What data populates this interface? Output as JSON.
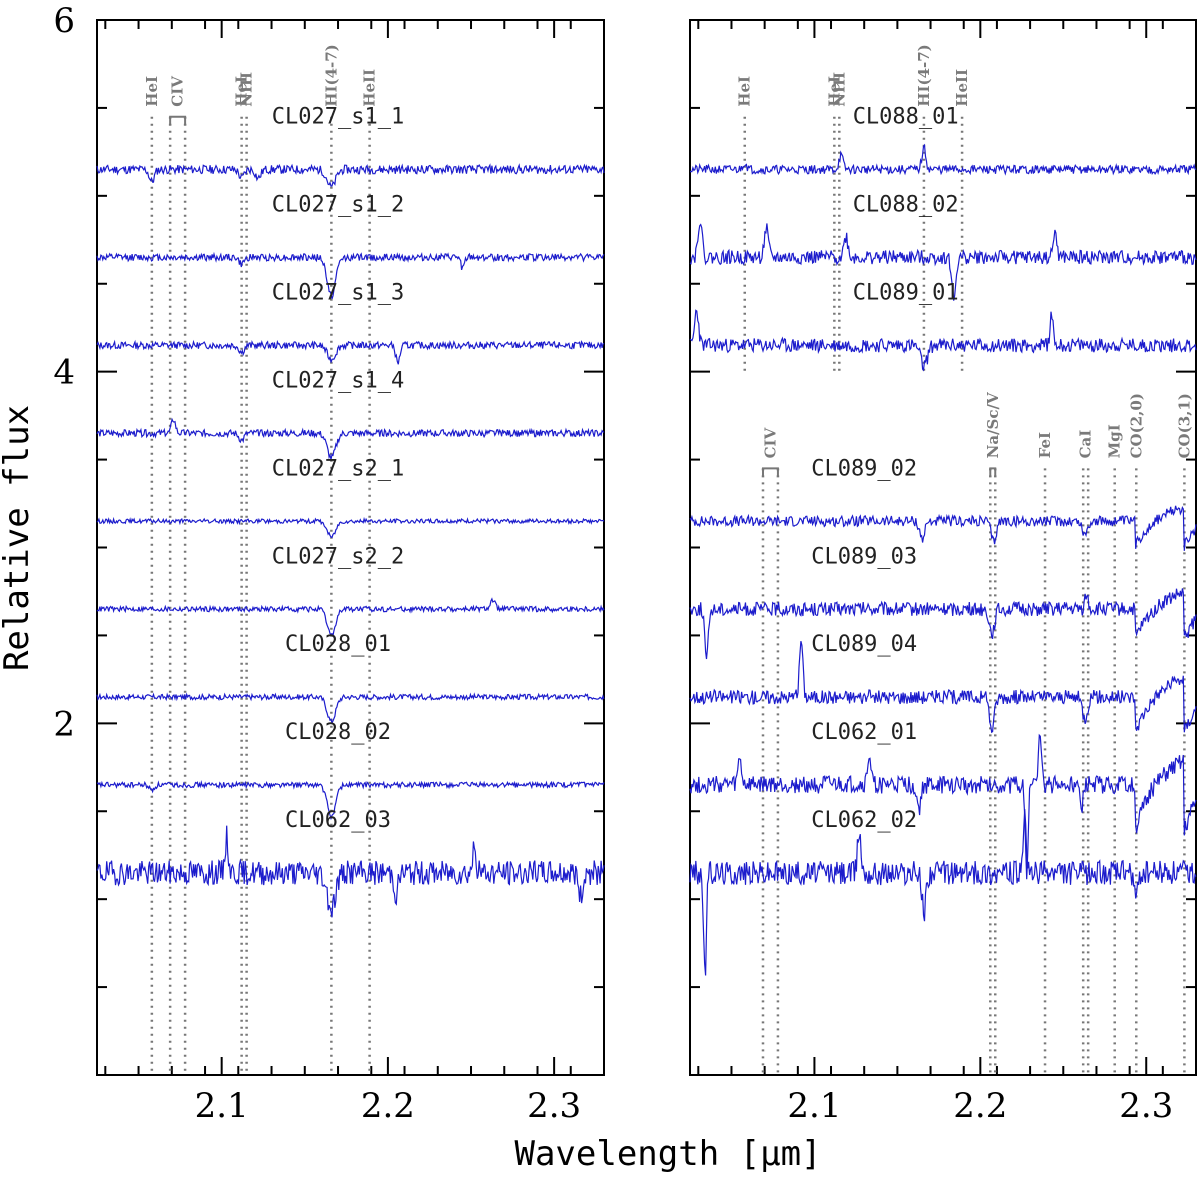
{
  "chart_data": {
    "type": "line",
    "xlabel": "Wavelength [μm]",
    "ylabel": "Relative flux",
    "colors": {
      "spectrum": "#1c1ccc",
      "marker": "#777777",
      "axis": "#000000"
    },
    "panels": [
      {
        "name": "left",
        "xlim": [
          2.025,
          2.33
        ],
        "ylim": [
          0.0,
          6.0
        ],
        "xticks": [
          {
            "value": 2.1,
            "label": "2.1"
          },
          {
            "value": 2.2,
            "label": "2.2"
          },
          {
            "value": 2.3,
            "label": "2.3"
          }
        ],
        "yticks": [
          {
            "value": 0,
            "label": ""
          },
          {
            "value": 2,
            "label": "2"
          },
          {
            "value": 4,
            "label": "4"
          },
          {
            "value": 6,
            "label": "6"
          }
        ],
        "line_markers": [
          {
            "label": "HeI",
            "x": [
              2.058
            ]
          },
          {
            "label": "CIV",
            "x": [
              2.069,
              2.078
            ],
            "bracket": true
          },
          {
            "label": "HeI",
            "x": [
              2.112
            ]
          },
          {
            "label": "NIII",
            "x": [
              2.115
            ]
          },
          {
            "label": "HI(4-7)",
            "x": [
              2.166
            ]
          },
          {
            "label": "HeII",
            "x": [
              2.189
            ]
          }
        ],
        "marker_range": [
          0.0,
          5.45
        ],
        "spectra": [
          {
            "name": "CL027_s1_1",
            "offset": 5.15,
            "noise": 0.025,
            "label_x": 2.17,
            "label_y": 5.45,
            "seed": 11,
            "lines": [
              [
                2.058,
                -0.07,
                0.0015
              ],
              [
                2.112,
                -0.05,
                0.0015
              ],
              [
                2.122,
                -0.05,
                0.0015
              ],
              [
                2.166,
                -0.1,
                0.0025
              ]
            ]
          },
          {
            "name": "CL027_s1_2",
            "offset": 4.65,
            "noise": 0.02,
            "label_x": 2.17,
            "label_y": 4.95,
            "seed": 12,
            "lines": [
              [
                2.112,
                -0.04,
                0.0015
              ],
              [
                2.166,
                -0.22,
                0.0025
              ],
              [
                2.245,
                -0.06,
                0.0012
              ]
            ]
          },
          {
            "name": "CL027_s1_3",
            "offset": 4.15,
            "noise": 0.02,
            "label_x": 2.17,
            "label_y": 4.45,
            "seed": 13,
            "lines": [
              [
                2.112,
                -0.04,
                0.0015
              ],
              [
                2.166,
                -0.08,
                0.0025
              ],
              [
                2.206,
                -0.1,
                0.0012
              ]
            ]
          },
          {
            "name": "CL027_s1_4",
            "offset": 3.65,
            "noise": 0.02,
            "label_x": 2.17,
            "label_y": 3.95,
            "seed": 14,
            "lines": [
              [
                2.071,
                0.08,
                0.0012
              ],
              [
                2.112,
                -0.04,
                0.0015
              ],
              [
                2.166,
                -0.14,
                0.0025
              ]
            ]
          },
          {
            "name": "CL027_s2_1",
            "offset": 3.15,
            "noise": 0.012,
            "label_x": 2.17,
            "label_y": 3.45,
            "seed": 15,
            "lines": [
              [
                2.166,
                -0.09,
                0.0025
              ]
            ]
          },
          {
            "name": "CL027_s2_2",
            "offset": 2.65,
            "noise": 0.015,
            "label_x": 2.17,
            "label_y": 2.95,
            "seed": 16,
            "lines": [
              [
                2.166,
                -0.15,
                0.0025
              ],
              [
                2.263,
                0.05,
                0.0015
              ]
            ]
          },
          {
            "name": "CL028_01",
            "offset": 2.15,
            "noise": 0.015,
            "label_x": 2.17,
            "label_y": 2.45,
            "seed": 17,
            "lines": [
              [
                2.166,
                -0.14,
                0.0025
              ]
            ]
          },
          {
            "name": "CL028_02",
            "offset": 1.65,
            "noise": 0.015,
            "label_x": 2.17,
            "label_y": 1.95,
            "seed": 18,
            "lines": [
              [
                2.058,
                -0.03,
                0.0015
              ],
              [
                2.166,
                -0.18,
                0.0025
              ]
            ]
          },
          {
            "name": "CL062_03",
            "offset": 1.15,
            "noise": 0.07,
            "label_x": 2.17,
            "label_y": 1.45,
            "seed": 19,
            "lines": [
              [
                2.103,
                0.2,
                0.001
              ],
              [
                2.166,
                -0.2,
                0.0025
              ],
              [
                2.205,
                -0.12,
                0.0012
              ],
              [
                2.252,
                0.15,
                0.001
              ],
              [
                2.316,
                -0.14,
                0.0012
              ]
            ]
          }
        ]
      },
      {
        "name": "right",
        "xlim": [
          2.025,
          2.33
        ],
        "ylim": [
          0.0,
          6.0
        ],
        "xticks": [
          {
            "value": 2.1,
            "label": "2.1"
          },
          {
            "value": 2.2,
            "label": "2.2"
          },
          {
            "value": 2.3,
            "label": "2.3"
          }
        ],
        "yticks": [
          {
            "value": 0,
            "label": ""
          },
          {
            "value": 2,
            "label": ""
          },
          {
            "value": 4,
            "label": ""
          },
          {
            "value": 6,
            "label": ""
          }
        ],
        "line_markers": [
          {
            "label": "HeI",
            "x": [
              2.058
            ],
            "range": [
              4.0,
              5.45
            ]
          },
          {
            "label": "HeI",
            "x": [
              2.112
            ],
            "range": [
              4.0,
              5.45
            ]
          },
          {
            "label": "NIII",
            "x": [
              2.115
            ],
            "range": [
              4.0,
              5.45
            ]
          },
          {
            "label": "HI(4-7)",
            "x": [
              2.166
            ],
            "range": [
              4.0,
              5.45
            ]
          },
          {
            "label": "HeII",
            "x": [
              2.189
            ],
            "range": [
              4.0,
              5.45
            ]
          },
          {
            "label": "CIV",
            "x": [
              2.069,
              2.078
            ],
            "bracket": true,
            "range": [
              0.0,
              3.45
            ]
          },
          {
            "label": "Na/Sc/V",
            "x": [
              2.206,
              2.209
            ],
            "bracket": true,
            "range": [
              0.0,
              3.45
            ]
          },
          {
            "label": "FeI",
            "x": [
              2.239
            ],
            "range": [
              0.0,
              3.45
            ]
          },
          {
            "label": "CaI",
            "x": [
              2.262,
              2.265
            ],
            "range": [
              0.0,
              3.45
            ]
          },
          {
            "label": "MgI",
            "x": [
              2.281
            ],
            "range": [
              0.0,
              3.45
            ]
          },
          {
            "label": "CO(2,0)",
            "x": [
              2.294
            ],
            "range": [
              0.0,
              3.45
            ]
          },
          {
            "label": "CO(3,1)",
            "x": [
              2.323
            ],
            "range": [
              0.0,
              3.45
            ]
          }
        ],
        "spectra": [
          {
            "name": "CL088_01",
            "offset": 5.15,
            "noise": 0.025,
            "label_x": 2.155,
            "label_y": 5.45,
            "seed": 21,
            "lines": [
              [
                2.058,
                0.04,
                0.0012
              ],
              [
                2.116,
                0.08,
                0.0012
              ],
              [
                2.166,
                0.12,
                0.0012
              ]
            ]
          },
          {
            "name": "CL088_02",
            "offset": 4.65,
            "noise": 0.04,
            "label_x": 2.155,
            "label_y": 4.95,
            "seed": 22,
            "lines": [
              [
                2.031,
                0.22,
                0.0012
              ],
              [
                2.071,
                0.16,
                0.0012
              ],
              [
                2.119,
                0.12,
                0.0012
              ],
              [
                2.184,
                -0.24,
                0.0012
              ],
              [
                2.245,
                0.15,
                0.001
              ]
            ]
          },
          {
            "name": "CL089_01",
            "offset": 4.15,
            "noise": 0.04,
            "label_x": 2.155,
            "label_y": 4.45,
            "seed": 23,
            "lines": [
              [
                2.029,
                0.2,
                0.0012
              ],
              [
                2.166,
                -0.12,
                0.002
              ],
              [
                2.243,
                0.17,
                0.001
              ]
            ]
          },
          {
            "name": "CL089_02",
            "offset": 3.15,
            "noise": 0.03,
            "label_x": 2.13,
            "label_y": 3.45,
            "seed": 24,
            "co": 0.25,
            "lines": [
              [
                2.165,
                -0.1,
                0.0015
              ],
              [
                2.208,
                -0.12,
                0.0015
              ],
              [
                2.263,
                -0.08,
                0.0015
              ]
            ]
          },
          {
            "name": "CL089_03",
            "offset": 2.65,
            "noise": 0.04,
            "label_x": 2.13,
            "label_y": 2.95,
            "seed": 25,
            "co": 0.3,
            "lines": [
              [
                2.035,
                -0.3,
                0.001
              ],
              [
                2.207,
                -0.14,
                0.0015
              ],
              [
                2.264,
                0.08,
                0.001
              ]
            ]
          },
          {
            "name": "CL089_04",
            "offset": 2.15,
            "noise": 0.04,
            "label_x": 2.13,
            "label_y": 2.45,
            "seed": 26,
            "co": 0.35,
            "lines": [
              [
                2.092,
                0.33,
                0.001
              ],
              [
                2.207,
                -0.18,
                0.0015
              ],
              [
                2.263,
                -0.12,
                0.0015
              ]
            ]
          },
          {
            "name": "CL062_01",
            "offset": 1.65,
            "noise": 0.05,
            "label_x": 2.13,
            "label_y": 1.95,
            "seed": 27,
            "co": 0.45,
            "lines": [
              [
                2.055,
                0.15,
                0.001
              ],
              [
                2.133,
                0.17,
                0.001
              ],
              [
                2.163,
                -0.14,
                0.0012
              ],
              [
                2.228,
                -0.5,
                0.0008
              ],
              [
                2.236,
                0.32,
                0.0008
              ],
              [
                2.261,
                -0.15,
                0.001
              ]
            ]
          },
          {
            "name": "CL062_02",
            "offset": 1.15,
            "noise": 0.07,
            "label_x": 2.13,
            "label_y": 1.45,
            "seed": 28,
            "lines": [
              [
                2.034,
                -0.6,
                0.0008
              ],
              [
                2.127,
                0.25,
                0.001
              ],
              [
                2.166,
                -0.22,
                0.0012
              ],
              [
                2.227,
                0.32,
                0.0008
              ],
              [
                2.294,
                -0.15,
                0.0012
              ]
            ]
          }
        ]
      }
    ]
  }
}
